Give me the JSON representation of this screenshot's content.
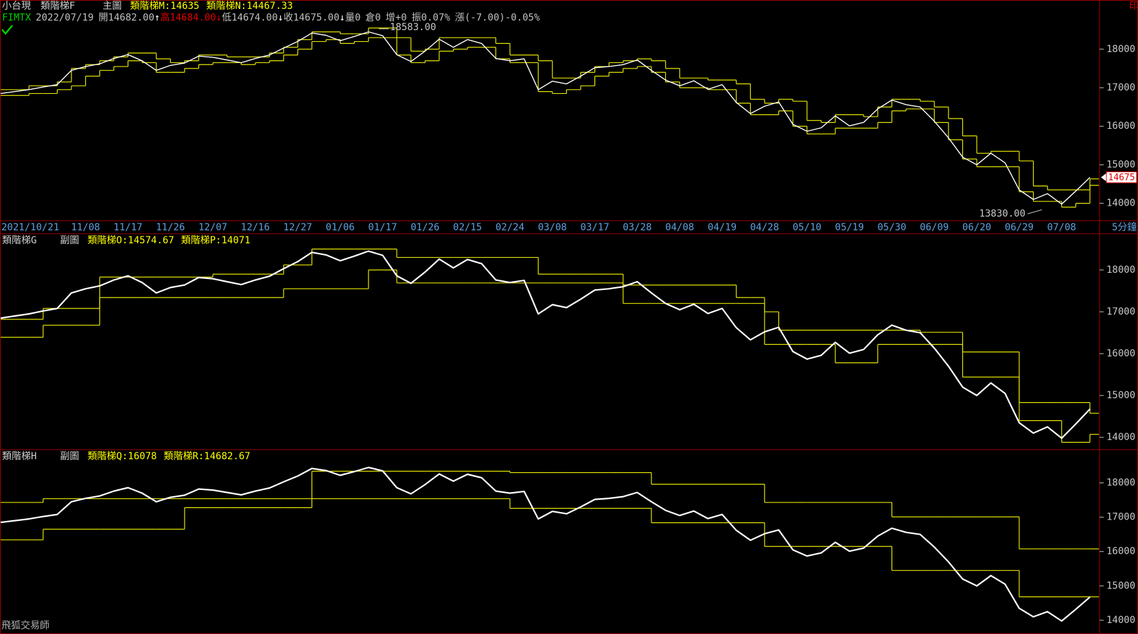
{
  "header": {
    "quote": [
      {
        "text": "FIMTX",
        "color": "#00d000"
      },
      {
        "text": "2022/07/19",
        "color": "#c0c0c0"
      },
      {
        "text": "開14682.00",
        "color": "#c0c0c0"
      },
      {
        "text": "↑",
        "color": "#ffffff"
      },
      {
        "text": "高14684.00",
        "color": "#e00000"
      },
      {
        "text": "↓",
        "color": "#e00000"
      },
      {
        "text": "低14674.00",
        "color": "#c0c0c0"
      },
      {
        "text": "↓",
        "color": "#ffffff"
      },
      {
        "text": "收14675.00",
        "color": "#c0c0c0"
      },
      {
        "text": "↓",
        "color": "#ffffff"
      },
      {
        "text": "量0",
        "color": "#c0c0c0"
      },
      {
        "text": "倉0",
        "color": "#c0c0c0"
      },
      {
        "text": "增+0",
        "color": "#c0c0c0"
      },
      {
        "text": "振0.07%",
        "color": "#c0c0c0"
      },
      {
        "text": "漲(-7.00)-0.05%",
        "color": "#c0c0c0"
      }
    ]
  },
  "print_label": "印",
  "footer": "飛狐交易師",
  "chart_data": {
    "type": "line",
    "interval": "5分鐘",
    "x": [
      "2021/10/21",
      null,
      null,
      null,
      null,
      null,
      "11/08",
      null,
      null,
      "11/17",
      null,
      null,
      "11/26",
      null,
      null,
      "12/07",
      null,
      null,
      "12/16",
      null,
      null,
      "12/27",
      null,
      null,
      "01/06",
      null,
      null,
      "01/17",
      null,
      null,
      "01/26",
      null,
      null,
      "02/15",
      null,
      null,
      "02/24",
      null,
      null,
      "03/08",
      null,
      null,
      "03/17",
      null,
      null,
      "03/28",
      null,
      null,
      "04/08",
      null,
      null,
      "04/19",
      null,
      null,
      "04/28",
      null,
      null,
      "05/10",
      null,
      null,
      "05/19",
      null,
      null,
      "05/30",
      null,
      null,
      "06/09",
      null,
      null,
      "06/20",
      null,
      null,
      "06/29",
      null,
      null,
      "07/08",
      null,
      null
    ],
    "price": {
      "color": "#ffffff",
      "values": [
        16850,
        16900,
        16950,
        17020,
        17080,
        17450,
        17550,
        17620,
        17760,
        17860,
        17700,
        17450,
        17580,
        17640,
        17820,
        17790,
        17720,
        17650,
        17760,
        17850,
        18030,
        18200,
        18420,
        18360,
        18220,
        18330,
        18450,
        18350,
        17860,
        17680,
        17950,
        18260,
        18050,
        18250,
        18150,
        17760,
        17700,
        17750,
        16950,
        17170,
        17100,
        17300,
        17520,
        17550,
        17600,
        17720,
        17450,
        17200,
        17050,
        17180,
        16960,
        17080,
        16620,
        16330,
        16520,
        16630,
        16050,
        15870,
        15960,
        16270,
        16010,
        16100,
        16450,
        16680,
        16560,
        16500,
        16130,
        15700,
        15200,
        15000,
        15300,
        15050,
        14350,
        14100,
        14250,
        13980,
        14320,
        14675
      ]
    },
    "panels": [
      {
        "symbol": "小台現",
        "title": "類階梯F",
        "kind": "主圖",
        "ylim": [
          13549,
          19277
        ],
        "yticks": [
          14000,
          15000,
          16000,
          17000,
          18000
        ],
        "last_price": 14675,
        "annotations": [
          "18583.00",
          "13830.00"
        ],
        "series": [
          {
            "name": "類階梯M:14635",
            "color": "#e6e600",
            "values": [
              16950,
              16950,
              17050,
              17050,
              17150,
              17500,
              17600,
              17700,
              17800,
              17900,
              17900,
              17750,
              17650,
              17700,
              17850,
              17850,
              17800,
              17800,
              17800,
              17900,
              18050,
              18250,
              18450,
              18450,
              18400,
              18400,
              18550,
              18550,
              18300,
              17950,
              18000,
              18300,
              18300,
              18300,
              18300,
              18150,
              17850,
              17850,
              17700,
              17250,
              17250,
              17400,
              17550,
              17650,
              17700,
              17750,
              17700,
              17500,
              17250,
              17250,
              17200,
              17200,
              17100,
              16700,
              16600,
              16700,
              16650,
              16150,
              16100,
              16300,
              16300,
              16250,
              16500,
              16700,
              16700,
              16650,
              16500,
              16200,
              15750,
              15300,
              15350,
              15350,
              15100,
              14450,
              14350,
              14350,
              14350,
              14635
            ]
          },
          {
            "name": "類階梯N:14467.33",
            "color": "#e6e600",
            "values": [
              16800,
              16800,
              16850,
              16850,
              16950,
              17050,
              17300,
              17450,
              17550,
              17700,
              17650,
              17400,
              17400,
              17500,
              17600,
              17650,
              17650,
              17600,
              17650,
              17700,
              17850,
              18000,
              18200,
              18250,
              18150,
              18200,
              18300,
              18300,
              17850,
              17650,
              17700,
              17950,
              18000,
              18050,
              18050,
              17750,
              17650,
              17650,
              16900,
              16850,
              16950,
              17050,
              17300,
              17400,
              17500,
              17550,
              17400,
              17150,
              17000,
              17000,
              16950,
              16950,
              16600,
              16300,
              16300,
              16400,
              16000,
              15800,
              15800,
              15950,
              15950,
              15950,
              16100,
              16400,
              16450,
              16450,
              16100,
              15650,
              15150,
              14950,
              14950,
              14950,
              14300,
              14050,
              14050,
              13900,
              14000,
              14467.33
            ]
          }
        ]
      },
      {
        "title": "類階梯G",
        "kind": "副圖",
        "ylim": [
          13706,
          18866
        ],
        "yticks": [
          14000,
          15000,
          16000,
          17000,
          18000
        ],
        "series": [
          {
            "name": "類階梯O:14574.67",
            "color": "#e6e600",
            "values": [
              16820,
              16820,
              16820,
              17080,
              17080,
              17080,
              17080,
              17830,
              17830,
              17830,
              17830,
              17830,
              17830,
              17830,
              17830,
              17900,
              17900,
              17900,
              17900,
              17900,
              18120,
              18120,
              18500,
              18500,
              18500,
              18500,
              18500,
              18500,
              18300,
              18300,
              18300,
              18300,
              18300,
              18300,
              18300,
              18300,
              18300,
              18300,
              17900,
              17900,
              17900,
              17900,
              17900,
              17900,
              17640,
              17640,
              17640,
              17640,
              17640,
              17640,
              17640,
              17640,
              17340,
              17340,
              17000,
              16560,
              16560,
              16560,
              16560,
              16560,
              16560,
              16560,
              16560,
              16560,
              16560,
              16510,
              16510,
              16510,
              16040,
              16040,
              16040,
              16040,
              14830,
              14830,
              14830,
              14830,
              14830,
              14574.67
            ]
          },
          {
            "name": "類階梯P:14071",
            "color": "#e6e600",
            "values": [
              16390,
              16390,
              16390,
              16680,
              16680,
              16680,
              16680,
              17340,
              17340,
              17340,
              17340,
              17340,
              17340,
              17340,
              17340,
              17340,
              17340,
              17340,
              17340,
              17340,
              17550,
              17550,
              17550,
              17550,
              17550,
              17550,
              18000,
              18000,
              17690,
              17690,
              17690,
              17690,
              17690,
              17690,
              17690,
              17690,
              17690,
              17690,
              17690,
              17690,
              17690,
              17690,
              17690,
              17690,
              17200,
              17200,
              17200,
              17200,
              17200,
              17200,
              17200,
              17200,
              17200,
              17200,
              16220,
              16220,
              16220,
              16220,
              16220,
              15780,
              15780,
              15780,
              16220,
              16220,
              16220,
              16220,
              16220,
              16220,
              15440,
              15440,
              15440,
              15440,
              14400,
              14400,
              14400,
              13880,
              13880,
              14071
            ]
          }
        ]
      },
      {
        "title": "類階梯H",
        "kind": "副圖",
        "ylim": [
          13600,
          18968
        ],
        "yticks": [
          14000,
          15000,
          16000,
          17000,
          18000
        ],
        "series": [
          {
            "name": "類階梯Q:16078",
            "color": "#e6e600",
            "values": [
              17430,
              17430,
              17430,
              17540,
              17540,
              17540,
              17540,
              17540,
              17540,
              17540,
              17540,
              17540,
              17540,
              17540,
              17540,
              17540,
              17540,
              17540,
              17540,
              17540,
              17540,
              17540,
              18340,
              18340,
              18340,
              18340,
              18340,
              18340,
              18340,
              18340,
              18340,
              18340,
              18340,
              18340,
              18340,
              18340,
              18300,
              18300,
              18300,
              18300,
              18300,
              18300,
              18300,
              18300,
              18300,
              18300,
              17960,
              17960,
              17960,
              17960,
              17960,
              17960,
              17960,
              17960,
              17430,
              17430,
              17430,
              17430,
              17430,
              17430,
              17430,
              17430,
              17430,
              17010,
              17010,
              17010,
              17010,
              17010,
              17010,
              17010,
              17010,
              17010,
              16078,
              16078,
              16078,
              16078,
              16078,
              16078
            ]
          },
          {
            "name": "類階梯R:14682.67",
            "color": "#e6e600",
            "values": [
              16340,
              16340,
              16340,
              16650,
              16650,
              16650,
              16650,
              16650,
              16650,
              16650,
              16650,
              16650,
              16650,
              17280,
              17280,
              17280,
              17280,
              17280,
              17280,
              17280,
              17280,
              17280,
              17540,
              17540,
              17540,
              17540,
              17540,
              17540,
              17540,
              17540,
              17540,
              17540,
              17540,
              17540,
              17540,
              17540,
              17260,
              17260,
              17260,
              17260,
              17260,
              17260,
              17260,
              17260,
              17260,
              17260,
              16840,
              16840,
              16840,
              16840,
              16840,
              16840,
              16840,
              16840,
              16150,
              16150,
              16150,
              16150,
              16150,
              16150,
              16150,
              16150,
              16150,
              15450,
              15450,
              15450,
              15450,
              15450,
              15450,
              15450,
              15450,
              15450,
              14682.67,
              14682.67,
              14682.67,
              14682.67,
              14682.67,
              14682.67
            ]
          }
        ]
      }
    ]
  }
}
